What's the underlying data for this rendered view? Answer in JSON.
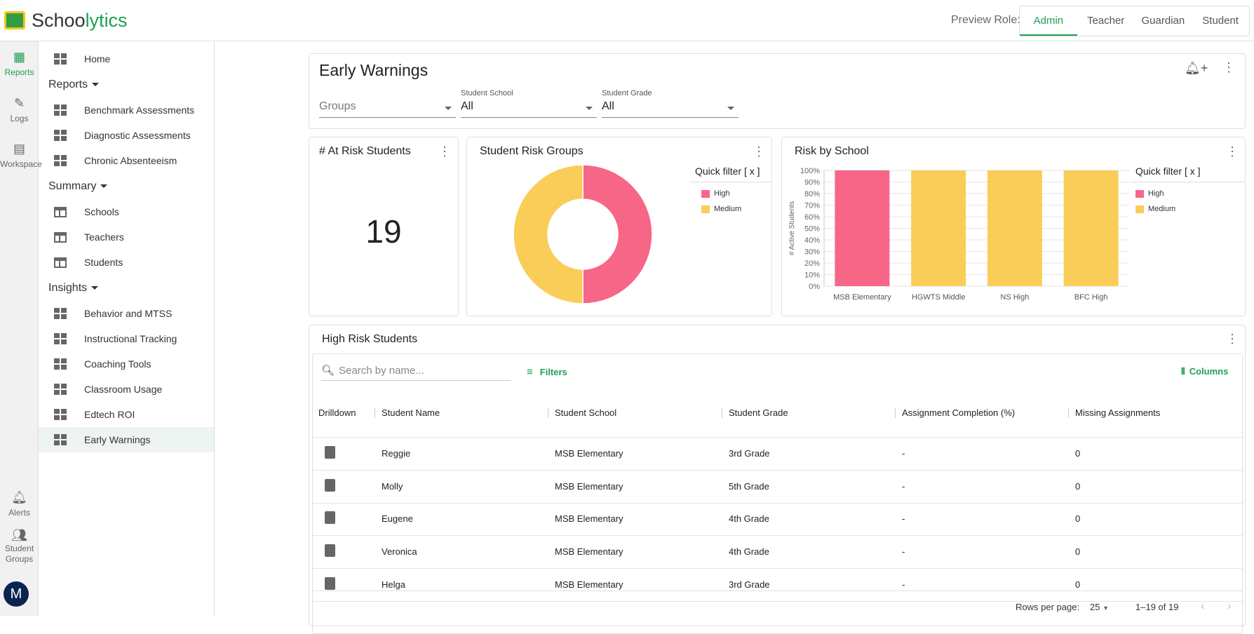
{
  "app": {
    "name_part1": "Schoo",
    "name_part2": "lytics"
  },
  "header": {
    "preview_label": "Preview Role:",
    "roles": [
      "Admin",
      "Teacher",
      "Guardian",
      "Student"
    ],
    "active_role": "Admin"
  },
  "rail": {
    "items": [
      {
        "label": "Reports",
        "icon": "dashboard-icon"
      },
      {
        "label": "Logs",
        "icon": "logs-icon"
      },
      {
        "label": "Workspace",
        "icon": "workspace-icon"
      },
      {
        "label": "Alerts",
        "icon": "bell-icon"
      },
      {
        "label": "Student Groups",
        "icon": "groups-icon"
      }
    ],
    "avatar": "M"
  },
  "sidebar": {
    "home": "Home",
    "sections": [
      {
        "label": "Reports",
        "items": [
          "Benchmark Assessments",
          "Diagnostic Assessments",
          "Chronic Absenteeism"
        ]
      },
      {
        "label": "Summary",
        "items": [
          "Schools",
          "Teachers",
          "Students"
        ]
      },
      {
        "label": "Insights",
        "items": [
          "Behavior and MTSS",
          "Instructional Tracking",
          "Coaching Tools",
          "Classroom Usage",
          "Edtech ROI",
          "Early Warnings"
        ]
      }
    ],
    "active": "Early Warnings"
  },
  "page": {
    "title": "Early Warnings",
    "filters": {
      "groups_placeholder": "Groups",
      "school_label": "Student School",
      "school_value": "All",
      "grade_label": "Student Grade",
      "grade_value": "All"
    }
  },
  "at_risk": {
    "title": "# At Risk Students",
    "value": "19"
  },
  "colors": {
    "high": "#f76687",
    "medium": "#f9cd58",
    "accent": "#1e9e53"
  },
  "chart_data": [
    {
      "type": "pie",
      "title": "Student Risk Groups",
      "legend_title": "Quick filter [ x ]",
      "legend": "right",
      "categories": [
        "High",
        "Medium"
      ],
      "values": [
        50,
        50
      ]
    },
    {
      "type": "bar",
      "title": "Risk by School",
      "legend_title": "Quick filter [ x ]",
      "legend": "right",
      "ylabel": "# Active Students",
      "ylim": [
        0,
        100
      ],
      "yticks": [
        "0%",
        "10%",
        "20%",
        "30%",
        "40%",
        "50%",
        "60%",
        "70%",
        "80%",
        "90%",
        "100%"
      ],
      "grid": true,
      "categories": [
        "MSB Elementary",
        "HGWTS Middle",
        "NS High",
        "BFC High"
      ],
      "series": [
        {
          "name": "High",
          "values": [
            100,
            0,
            0,
            0
          ]
        },
        {
          "name": "Medium",
          "values": [
            0,
            100,
            100,
            100
          ]
        }
      ]
    }
  ],
  "table": {
    "title": "High Risk Students",
    "search_placeholder": "Search by name...",
    "filters_label": "Filters",
    "columns_label": "Columns",
    "headers": [
      "Drilldown",
      "Student Name",
      "Student School",
      "Student Grade",
      "Assignment Completion (%)",
      "Missing Assignments"
    ],
    "rows": [
      [
        "Reggie",
        "MSB Elementary",
        "3rd Grade",
        "-",
        "0"
      ],
      [
        "Molly",
        "MSB Elementary",
        "5th Grade",
        "-",
        "0"
      ],
      [
        "Eugene",
        "MSB Elementary",
        "4th Grade",
        "-",
        "0"
      ],
      [
        "Veronica",
        "MSB Elementary",
        "4th Grade",
        "-",
        "0"
      ],
      [
        "Helga",
        "MSB Elementary",
        "3rd Grade",
        "-",
        "0"
      ]
    ],
    "footer": {
      "rows_per_page_label": "Rows per page:",
      "rows_per_page": "25",
      "range": "1–19 of 19"
    }
  }
}
